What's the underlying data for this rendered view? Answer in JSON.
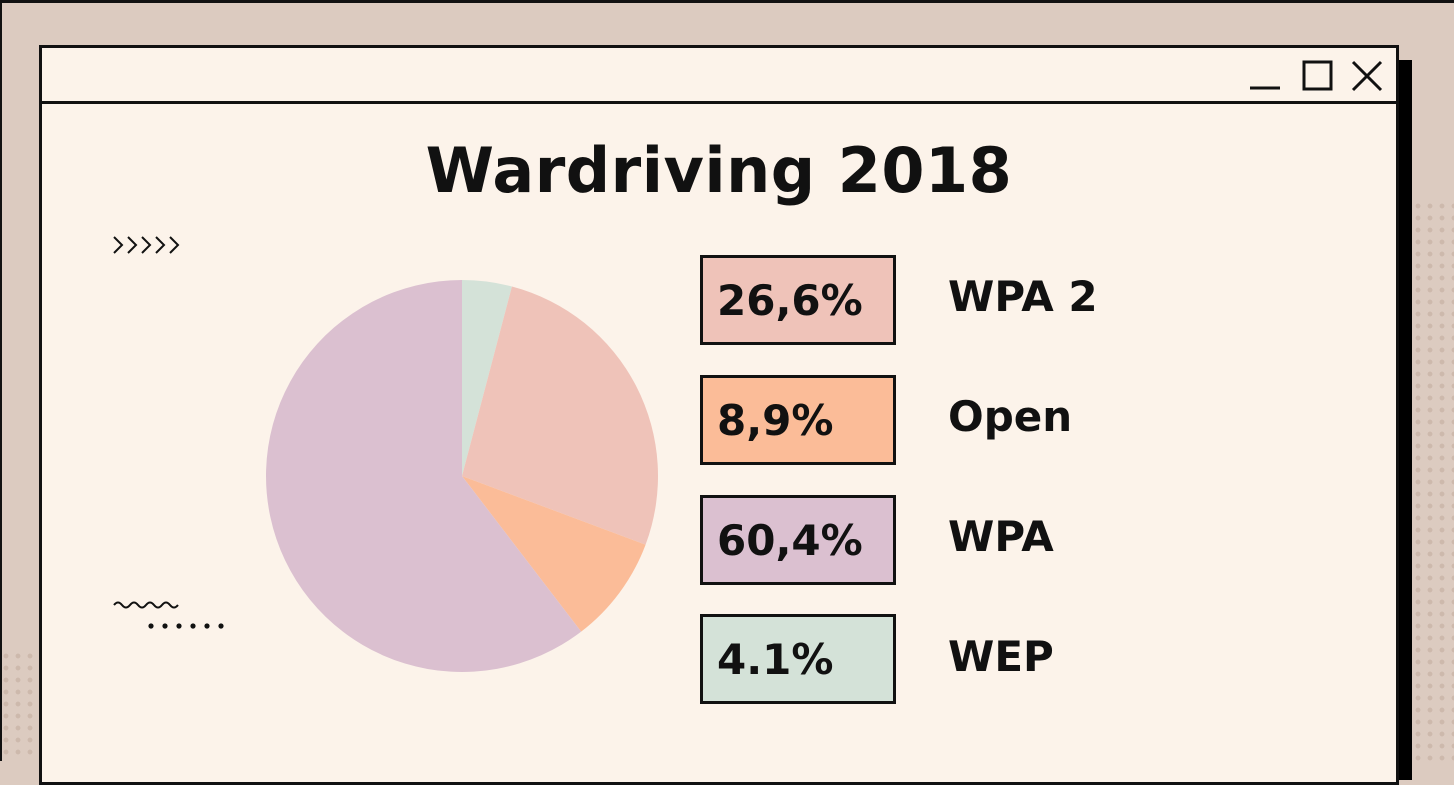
{
  "window": {
    "controls": {
      "minimize": "minimize-icon",
      "maximize": "maximize-icon",
      "close": "close-icon"
    }
  },
  "slides": {
    "title": "Wardriving 2018"
  },
  "chart_data": {
    "type": "pie",
    "title": "Wardriving 2018",
    "start_angle_deg": 0,
    "direction": "clockwise",
    "slices": [
      {
        "label": "WEP",
        "value": 4.1,
        "value_label": "4.1%",
        "color": "#d4e2d8"
      },
      {
        "label": "WPA 2",
        "value": 26.6,
        "value_label": "26,6%",
        "color": "#efc3b9"
      },
      {
        "label": "Open",
        "value": 8.9,
        "value_label": "8,9%",
        "color": "#fbbc98"
      },
      {
        "label": "WPA",
        "value": 60.4,
        "value_label": "60,4%",
        "color": "#dbc0d0"
      }
    ],
    "legend": [
      {
        "label": "WPA 2",
        "value_label": "26,6%",
        "color": "#efc3b9"
      },
      {
        "label": "Open",
        "value_label": "8,9%",
        "color": "#fbbc98"
      },
      {
        "label": "WPA",
        "value_label": "60,4%",
        "color": "#dbc0d0"
      },
      {
        "label": "WEP",
        "value_label": "4.1%",
        "color": "#d4e2d8"
      }
    ],
    "legend_position": "right"
  },
  "colors": {
    "background": "#dccbc0",
    "window": "#fcf3ea",
    "ink": "#111111"
  }
}
